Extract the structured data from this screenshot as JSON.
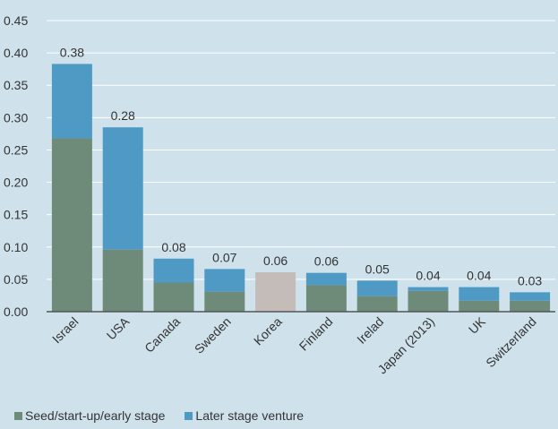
{
  "chart_data": {
    "type": "bar",
    "stacked": true,
    "categories": [
      "Israel",
      "USA",
      "Canada",
      "Sweden",
      "Korea",
      "Finland",
      "Irelad",
      "Japan (2013)",
      "UK",
      "Switzerland"
    ],
    "series": [
      {
        "name": "Seed/start-up/early stage",
        "color": "#6e8b7a",
        "values": [
          0.268,
          0.096,
          0.045,
          0.031,
          0.061,
          0.041,
          0.024,
          0.032,
          0.017,
          0.017
        ]
      },
      {
        "name": "Later stage venture",
        "color": "#4f9ac4",
        "values": [
          0.115,
          0.189,
          0.037,
          0.035,
          0.0,
          0.019,
          0.024,
          0.006,
          0.021,
          0.013
        ]
      }
    ],
    "highlight": {
      "category": "Korea",
      "color": "#c3bcb8"
    },
    "total_labels": [
      "0.38",
      "0.28",
      "0.08",
      "0.07",
      "0.06",
      "0.06",
      "0.05",
      "0.04",
      "0.04",
      "0.03"
    ],
    "ylim": [
      0,
      0.45
    ],
    "yticks": [
      "0.00",
      "0.05",
      "0.10",
      "0.15",
      "0.20",
      "0.25",
      "0.30",
      "0.35",
      "0.40",
      "0.45"
    ],
    "grid": true,
    "legend_position": "bottom-left",
    "colors": {
      "background": "#cfe2ec",
      "grid": "#ffffff",
      "axis": "#555555",
      "text": "#333333"
    }
  }
}
